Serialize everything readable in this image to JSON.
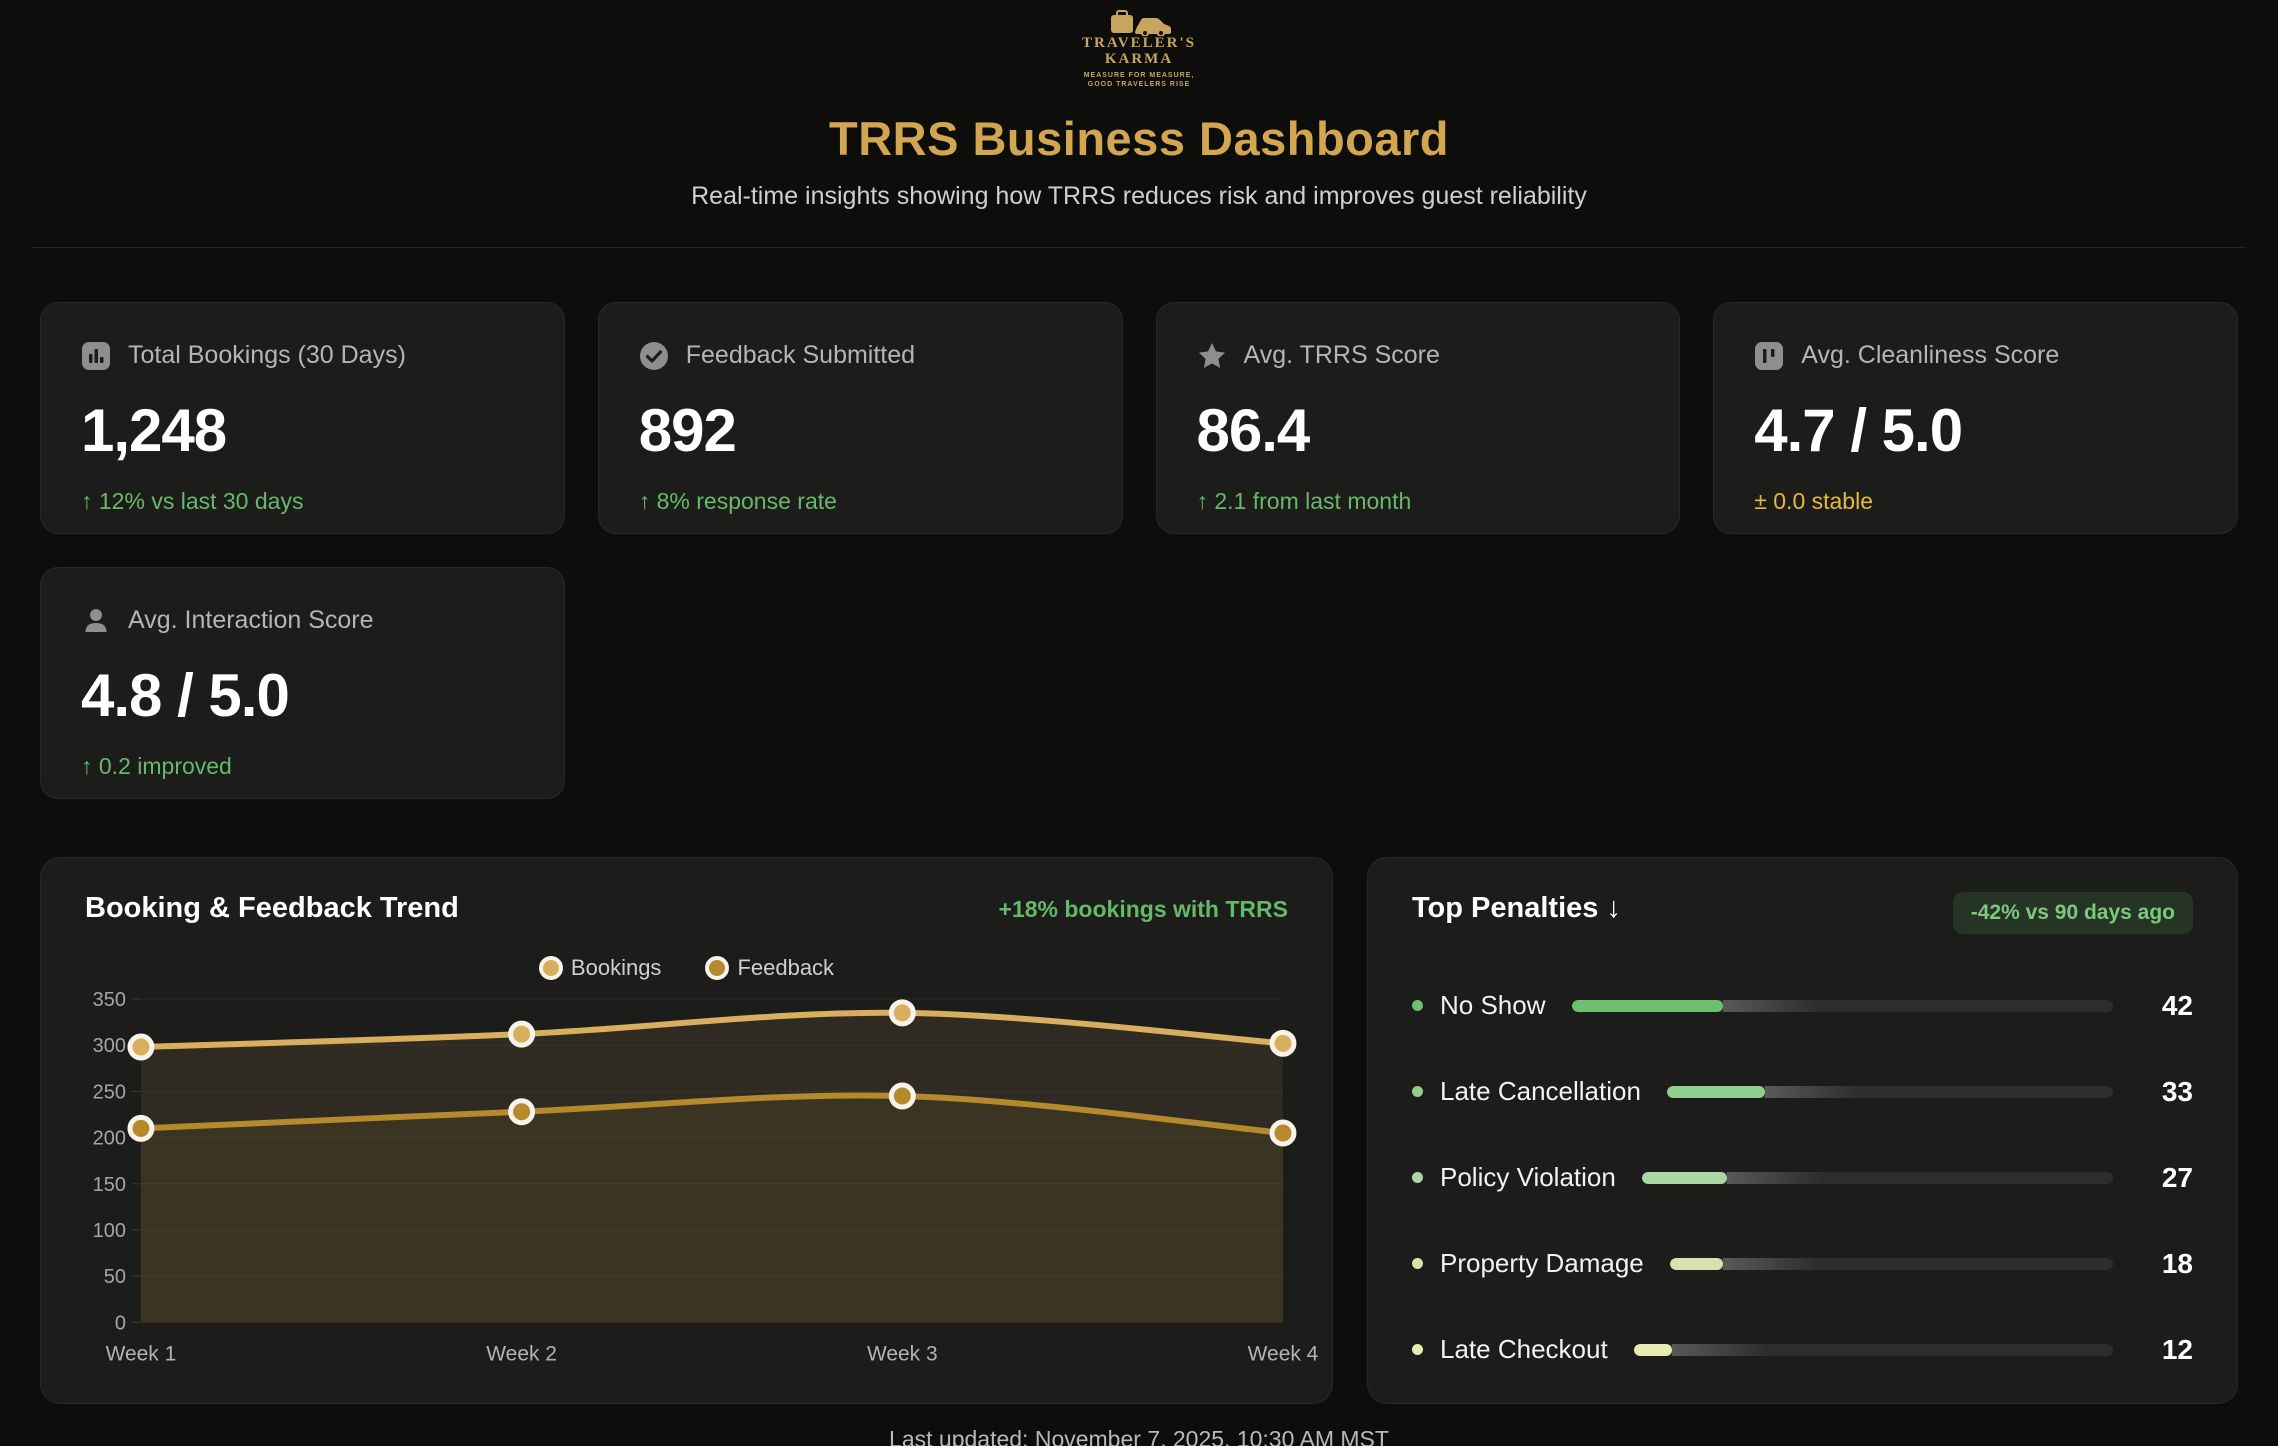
{
  "brand": {
    "name_line1": "TRAVELER'S",
    "name_line2": "KARMA",
    "tagline_line1": "MEASURE FOR MEASURE,",
    "tagline_line2": "GOOD TRAVELERS RISE"
  },
  "header": {
    "title": "TRRS Business Dashboard",
    "subtitle": "Real-time insights showing how TRRS reduces risk and improves guest reliability"
  },
  "stats": [
    {
      "icon": "bar-chart-icon",
      "label": "Total Bookings (30 Days)",
      "value": "1,248",
      "delta": "↑ 12% vs last 30 days",
      "delta_color": "#67b96a"
    },
    {
      "icon": "check-circle-icon",
      "label": "Feedback Submitted",
      "value": "892",
      "delta": "↑ 8% response rate",
      "delta_color": "#67b96a"
    },
    {
      "icon": "star-icon",
      "label": "Avg. TRRS Score",
      "value": "86.4",
      "delta": "↑ 2.1 from last month",
      "delta_color": "#67b96a"
    },
    {
      "icon": "columns-icon",
      "label": "Avg. Cleanliness Score",
      "value": "4.7 / 5.0",
      "delta": "± 0.0 stable",
      "delta_color": "#e5b93e"
    },
    {
      "icon": "person-icon",
      "label": "Avg. Interaction Score",
      "value": "4.8 / 5.0",
      "delta": "↑ 0.2 improved",
      "delta_color": "#67b96a"
    }
  ],
  "chart_card": {
    "title": "Booking & Feedback Trend",
    "highlight": "+18% bookings with TRRS"
  },
  "chart_data": {
    "type": "line",
    "x": [
      "Week 1",
      "Week 2",
      "Week 3",
      "Week 4"
    ],
    "series": [
      {
        "name": "Bookings",
        "values": [
          298,
          312,
          335,
          302
        ],
        "color": "#d9ae5e"
      },
      {
        "name": "Feedback",
        "values": [
          210,
          228,
          245,
          205
        ],
        "color": "#b5892c"
      }
    ],
    "ylim": [
      0,
      350
    ],
    "ytick_step": 50,
    "grid": true,
    "legend_position": "top-center",
    "area_fill": true,
    "smooth": true
  },
  "penalties": {
    "title": "Top Penalties ↓",
    "badge": "-42% vs 90 days ago",
    "bar_max": 150,
    "items": [
      {
        "label": "No Show",
        "value": 42,
        "color": "#6cc070"
      },
      {
        "label": "Late Cancellation",
        "value": 33,
        "color": "#8fcf8e"
      },
      {
        "label": "Policy Violation",
        "value": 27,
        "color": "#a9d8a4"
      },
      {
        "label": "Property Damage",
        "value": 18,
        "color": "#d3e2ae"
      },
      {
        "label": "Late Checkout",
        "value": 12,
        "color": "#e9ecb2"
      }
    ]
  },
  "footer": {
    "last_updated": "Last updated: November 7, 2025, 10:30 AM MST"
  },
  "colors": {
    "page_bg": "#0d0d0c",
    "card_bg": "#1c1c1b",
    "accent_gold": "#d2a551",
    "positive_green": "#67b96a",
    "neutral_amber": "#e5b93e",
    "badge_bg": "#263426",
    "badge_text": "#7dc87d"
  }
}
